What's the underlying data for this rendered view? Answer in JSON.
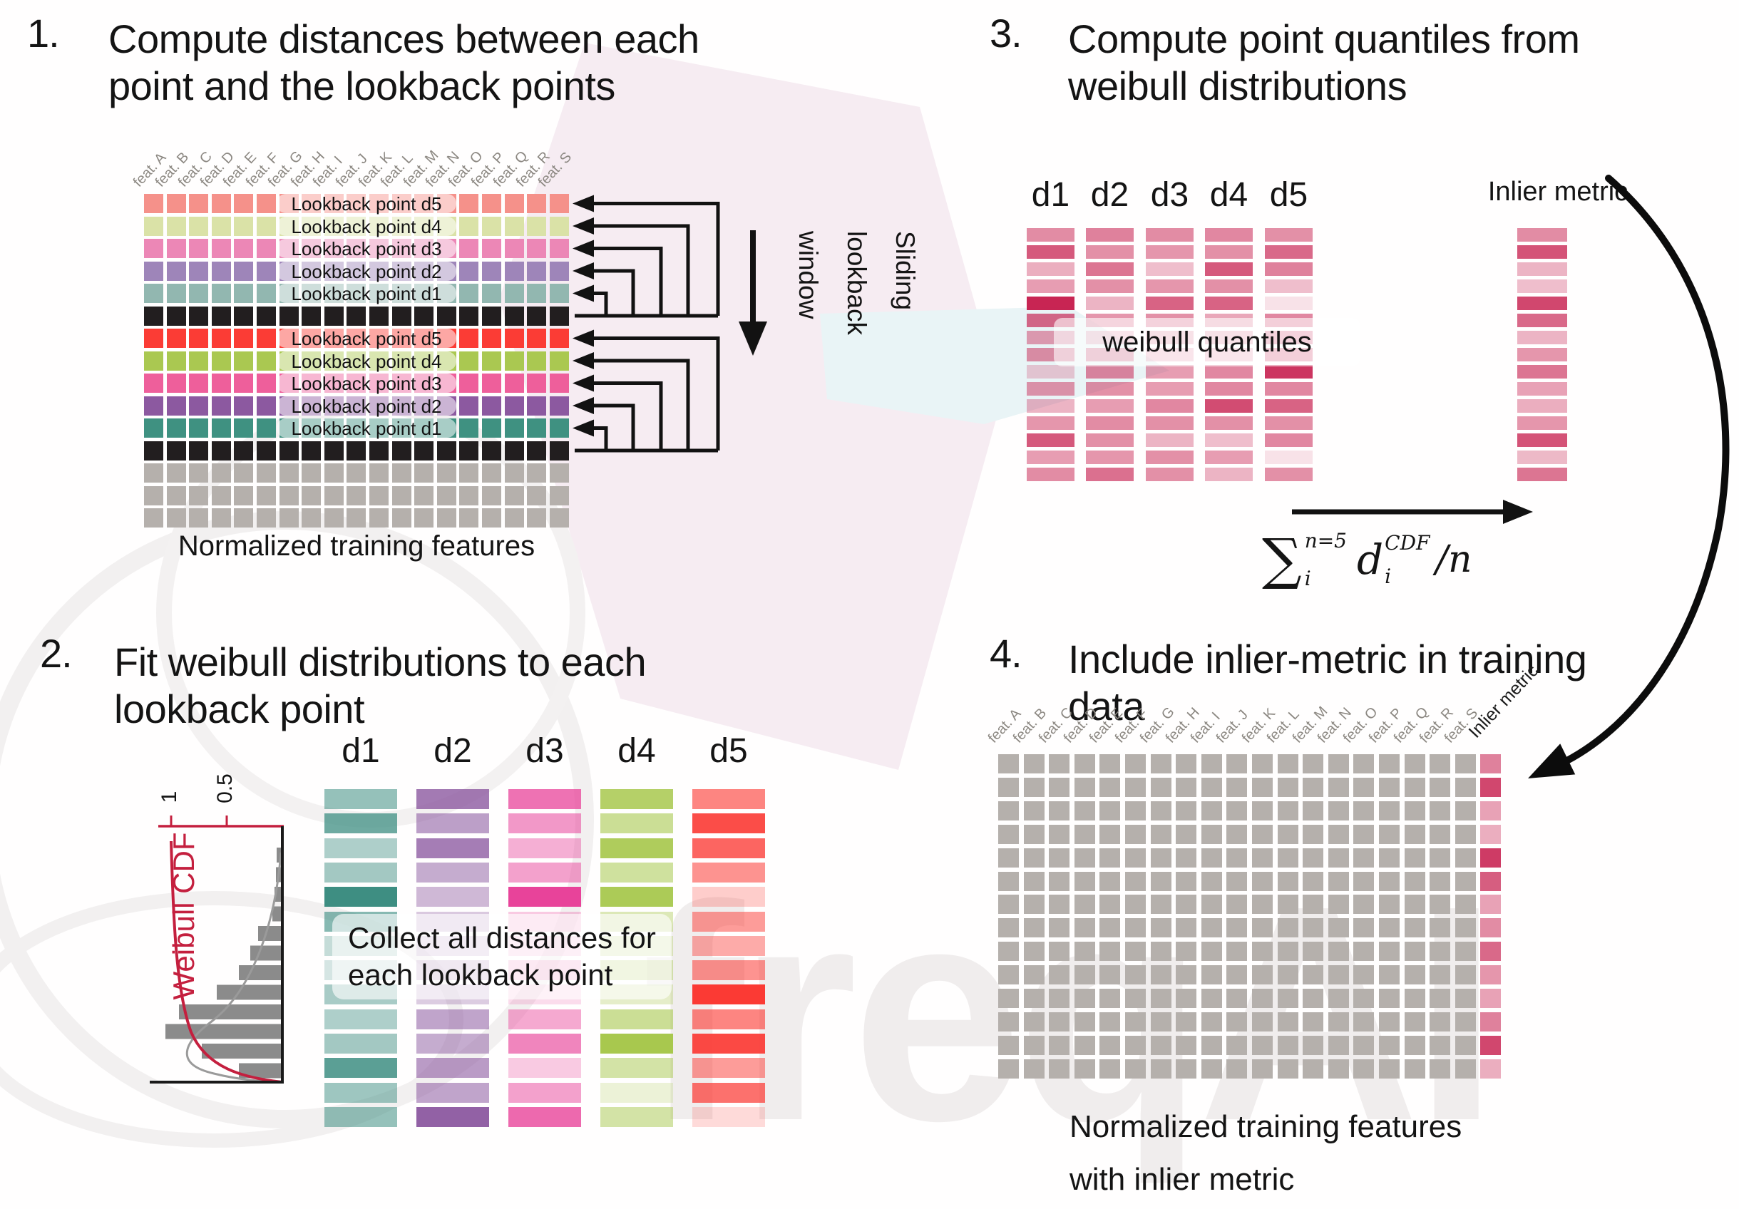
{
  "watermark": {
    "text": "freqAI"
  },
  "panel1": {
    "number": "1.",
    "title_lines": [
      "Compute distances between each",
      "point and the lookback points"
    ],
    "caption": "Normalized training features",
    "feature_labels": [
      "feat. A",
      "feat. B",
      "feat. C",
      "feat. D",
      "feat. E",
      "feat. F",
      "feat. G",
      "feat. H",
      "feat. I",
      "feat. J",
      "feat. K",
      "feat. L",
      "feat. M",
      "feat. N",
      "feat. O",
      "feat. P",
      "feat. Q",
      "feat. R",
      "feat. S"
    ],
    "sliding_label_lines": [
      "Sliding",
      "lookback",
      "window"
    ],
    "rows": [
      {
        "color": "#F5918A",
        "label": "Lookback point d5"
      },
      {
        "color": "#DAE2A7",
        "label": "Lookback point d4"
      },
      {
        "color": "#EC87B6",
        "label": "Lookback point d3"
      },
      {
        "color": "#9E85B9",
        "label": "Lookback point d2"
      },
      {
        "color": "#92B7B0",
        "label": "Lookback point d1"
      },
      {
        "color": "#221E1F"
      },
      {
        "color": "#FB3C35",
        "label": "Lookback point d5"
      },
      {
        "color": "#AAC851",
        "label": "Lookback point d4"
      },
      {
        "color": "#EE5F9B",
        "label": "Lookback point d3"
      },
      {
        "color": "#8C59A0",
        "label": "Lookback point d2"
      },
      {
        "color": "#3F9181",
        "label": "Lookback point d1"
      },
      {
        "color": "#221E1F"
      },
      {
        "color": "#B5B0AC"
      },
      {
        "color": "#B5B0AC"
      },
      {
        "color": "#B5B0AC"
      }
    ]
  },
  "panel2": {
    "number": "2.",
    "title_lines": [
      "Fit weibull distributions to each",
      "lookback point"
    ],
    "column_headers": [
      "d1",
      "d2",
      "d3",
      "d4",
      "d5"
    ],
    "overlay_lines": [
      "Collect all distances for",
      "each lookback point"
    ],
    "plot": {
      "ylabel": "Weibull CDF",
      "tick_labels": [
        "1",
        "0.5"
      ],
      "histogram_bar_lengths": [
        6,
        7,
        9,
        12,
        32,
        43,
        59,
        90,
        143,
        162,
        111,
        59
      ]
    },
    "columns": [
      {
        "name": "d1",
        "color": "#3E8E82",
        "opacities": [
          0.55,
          0.75,
          0.42,
          0.48,
          1,
          0.62,
          0.3,
          0.22,
          0.45,
          0.42,
          0.48,
          0.85,
          0.5,
          0.55
        ]
      },
      {
        "name": "d2",
        "color": "#8C59A0",
        "opacities": [
          0.8,
          0.58,
          0.78,
          0.5,
          0.42,
          0.32,
          0.28,
          0.34,
          0.3,
          0.55,
          0.5,
          0.6,
          0.55,
          0.95
        ]
      },
      {
        "name": "d3",
        "color": "#E8439A",
        "opacities": [
          0.75,
          0.55,
          0.42,
          0.5,
          1,
          0.28,
          0.2,
          0.3,
          0.18,
          0.45,
          0.65,
          0.28,
          0.5,
          0.8
        ]
      },
      {
        "name": "d4",
        "color": "#A8C84E",
        "opacities": [
          0.85,
          0.6,
          0.92,
          0.55,
          0.95,
          0.4,
          0.32,
          0.42,
          0.3,
          0.6,
          1,
          0.5,
          0.22,
          0.5
        ]
      },
      {
        "name": "d5",
        "color": "#FB3A34",
        "opacities": [
          0.62,
          0.9,
          0.78,
          0.55,
          0.25,
          0.5,
          0.42,
          0.55,
          1,
          0.62,
          0.92,
          0.5,
          0.72,
          0.18
        ]
      }
    ]
  },
  "panel3": {
    "number": "3.",
    "title_lines": [
      "Compute point quantiles from",
      "weibull distributions"
    ],
    "column_headers": [
      "d1",
      "d2",
      "d3",
      "d4",
      "d5"
    ],
    "overlay": "weibull quantiles",
    "inlier_header": "Inlier metric",
    "bar_color": "#C5194A",
    "columns": [
      {
        "name": "d1",
        "opacities": [
          0.5,
          0.72,
          0.35,
          0.42,
          0.95,
          0.65,
          0.42,
          0.48,
          0.22,
          0.45,
          0.32,
          0.45,
          0.72,
          0.42,
          0.5
        ]
      },
      {
        "name": "d2",
        "opacities": [
          0.55,
          0.48,
          0.6,
          0.48,
          0.32,
          0.45,
          0.28,
          0.48,
          0.52,
          0.48,
          0.42,
          0.5,
          0.48,
          0.45,
          0.62
        ]
      },
      {
        "name": "d3",
        "opacities": [
          0.5,
          0.45,
          0.28,
          0.45,
          0.68,
          0.48,
          0.32,
          0.28,
          0.42,
          0.42,
          0.52,
          0.48,
          0.32,
          0.48,
          0.48
        ]
      },
      {
        "name": "d4",
        "opacities": [
          0.52,
          0.48,
          0.72,
          0.48,
          0.68,
          0.38,
          0.32,
          0.28,
          0.52,
          0.52,
          0.78,
          0.48,
          0.28,
          0.42,
          0.32
        ]
      },
      {
        "name": "d5",
        "opacities": [
          0.48,
          0.65,
          0.55,
          0.28,
          0.12,
          0.52,
          0.48,
          0.52,
          0.88,
          0.52,
          0.68,
          0.48,
          0.52,
          0.12,
          0.48
        ]
      }
    ],
    "inlier_opacities": [
      0.5,
      0.75,
      0.32,
      0.28,
      0.8,
      0.65,
      0.32,
      0.45,
      0.6,
      0.4,
      0.35,
      0.45,
      0.75,
      0.3,
      0.6
    ],
    "formula": {
      "sum": "∑",
      "sup": "n=5",
      "sub": "i",
      "var": "d",
      "var_sup": "CDF",
      "var_sub": "i",
      "tail": "/n"
    }
  },
  "panel4": {
    "number": "4.",
    "title_lines": [
      "Include inlier-metric in training",
      "data"
    ],
    "caption_lines": [
      "Normalized training features",
      "with inlier metric"
    ],
    "feature_labels": [
      "feat. A",
      "feat. B",
      "feat. C",
      "feat. D",
      "feat. E",
      "feat. F",
      "feat. G",
      "feat. H",
      "feat. I",
      "feat. J",
      "feat. K",
      "feat. L",
      "feat. M",
      "feat. N",
      "feat. O",
      "feat. P",
      "feat. Q",
      "feat. R",
      "feat. S"
    ],
    "inlier_label": "Inlier metric",
    "cell_color": "#B5B0AC",
    "inlier_color": "#C5194A",
    "inlier_opacities": [
      0.55,
      0.8,
      0.4,
      0.35,
      0.85,
      0.7,
      0.4,
      0.5,
      0.65,
      0.45,
      0.4,
      0.55,
      0.8,
      0.35
    ]
  }
}
